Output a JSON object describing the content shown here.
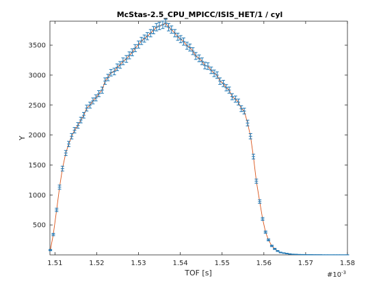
{
  "chart_data": {
    "type": "line",
    "title": "McStas-2.5_CPU_MPICC/ISIS_HET/1 / cyl",
    "xlabel": "TOF [s]",
    "ylabel": "Y",
    "x_multiplier_label": "#10",
    "x_multiplier_exponent": "-3",
    "xlim": [
      1.5088,
      1.58
    ],
    "ylim": [
      0,
      3900
    ],
    "grid": false,
    "x_ticks": [
      1.51,
      1.52,
      1.53,
      1.54,
      1.55,
      1.56,
      1.57,
      1.58
    ],
    "x_tick_labels": [
      "1.51",
      "1.52",
      "1.53",
      "1.54",
      "1.55",
      "1.56",
      "1.57",
      "1.58"
    ],
    "y_ticks": [
      500,
      1000,
      1500,
      2000,
      2500,
      3000,
      3500
    ],
    "y_tick_labels": [
      "500",
      "1000",
      "1500",
      "2000",
      "2500",
      "3000",
      "3500"
    ],
    "colors": {
      "errorbar": "#1f77b4",
      "line": "#d95319",
      "axes": "#262626"
    },
    "series": [
      {
        "x": [
          1.5089,
          1.5096,
          1.5104,
          1.5111,
          1.5118,
          1.5126,
          1.5133,
          1.514,
          1.5147,
          1.5155,
          1.5162,
          1.5169,
          1.5176,
          1.5184,
          1.5191,
          1.5198,
          1.5205,
          1.5213,
          1.522,
          1.5227,
          1.5234,
          1.5242,
          1.5249,
          1.5256,
          1.5263,
          1.5271,
          1.5278,
          1.5285,
          1.5292,
          1.53,
          1.5307,
          1.5314,
          1.5321,
          1.5329,
          1.5336,
          1.5343,
          1.535,
          1.5358,
          1.5365,
          1.5372,
          1.5379,
          1.5387,
          1.5394,
          1.5401,
          1.5408,
          1.5416,
          1.5423,
          1.543,
          1.5437,
          1.5445,
          1.5452,
          1.5459,
          1.5466,
          1.5474,
          1.5481,
          1.5488,
          1.5495,
          1.5503,
          1.551,
          1.5517,
          1.5524,
          1.5532,
          1.5539,
          1.5546,
          1.5553,
          1.5561,
          1.5568,
          1.5575,
          1.5582,
          1.559,
          1.5597,
          1.5604,
          1.5611,
          1.5619,
          1.5626,
          1.5633,
          1.564,
          1.5648,
          1.5655,
          1.5662,
          1.5669,
          1.5677,
          1.5684,
          1.5691,
          1.5698,
          1.5706,
          1.5713,
          1.572,
          1.5727,
          1.5735,
          1.5742,
          1.5749,
          1.5756,
          1.5764,
          1.5771,
          1.5778,
          1.5785,
          1.5793,
          1.58
        ],
        "y": [
          80,
          340,
          750,
          1130,
          1440,
          1700,
          1850,
          1980,
          2080,
          2160,
          2250,
          2330,
          2450,
          2500,
          2570,
          2620,
          2690,
          2750,
          2900,
          2960,
          3040,
          3060,
          3130,
          3170,
          3230,
          3270,
          3330,
          3380,
          3450,
          3510,
          3570,
          3610,
          3650,
          3700,
          3750,
          3800,
          3820,
          3840,
          3870,
          3800,
          3760,
          3700,
          3640,
          3600,
          3560,
          3490,
          3460,
          3400,
          3320,
          3280,
          3230,
          3160,
          3150,
          3080,
          3030,
          3000,
          2900,
          2860,
          2790,
          2750,
          2640,
          2600,
          2550,
          2440,
          2400,
          2200,
          1980,
          1640,
          1230,
          890,
          600,
          380,
          250,
          150,
          100,
          65,
          40,
          30,
          22,
          15,
          10,
          8,
          6,
          5,
          4,
          3,
          3,
          2,
          2,
          2,
          1,
          1,
          1,
          1,
          1,
          1,
          1,
          1,
          1
        ],
        "err": [
          10,
          20,
          28,
          35,
          40,
          42,
          44,
          45,
          46,
          47,
          48,
          48,
          49,
          50,
          50,
          51,
          51,
          52,
          54,
          54,
          55,
          55,
          56,
          56,
          57,
          57,
          58,
          58,
          59,
          59,
          60,
          60,
          60,
          61,
          61,
          62,
          62,
          62,
          62,
          62,
          61,
          61,
          60,
          60,
          60,
          59,
          59,
          58,
          58,
          57,
          57,
          56,
          56,
          55,
          55,
          55,
          54,
          53,
          53,
          52,
          51,
          51,
          50,
          49,
          49,
          47,
          44,
          40,
          35,
          30,
          24,
          19,
          16,
          12,
          10,
          8,
          6,
          5,
          5,
          4,
          3,
          3,
          2,
          2,
          2,
          2,
          2,
          1,
          1,
          1,
          1,
          1,
          1,
          1,
          1,
          1,
          1,
          1,
          1
        ]
      }
    ]
  }
}
